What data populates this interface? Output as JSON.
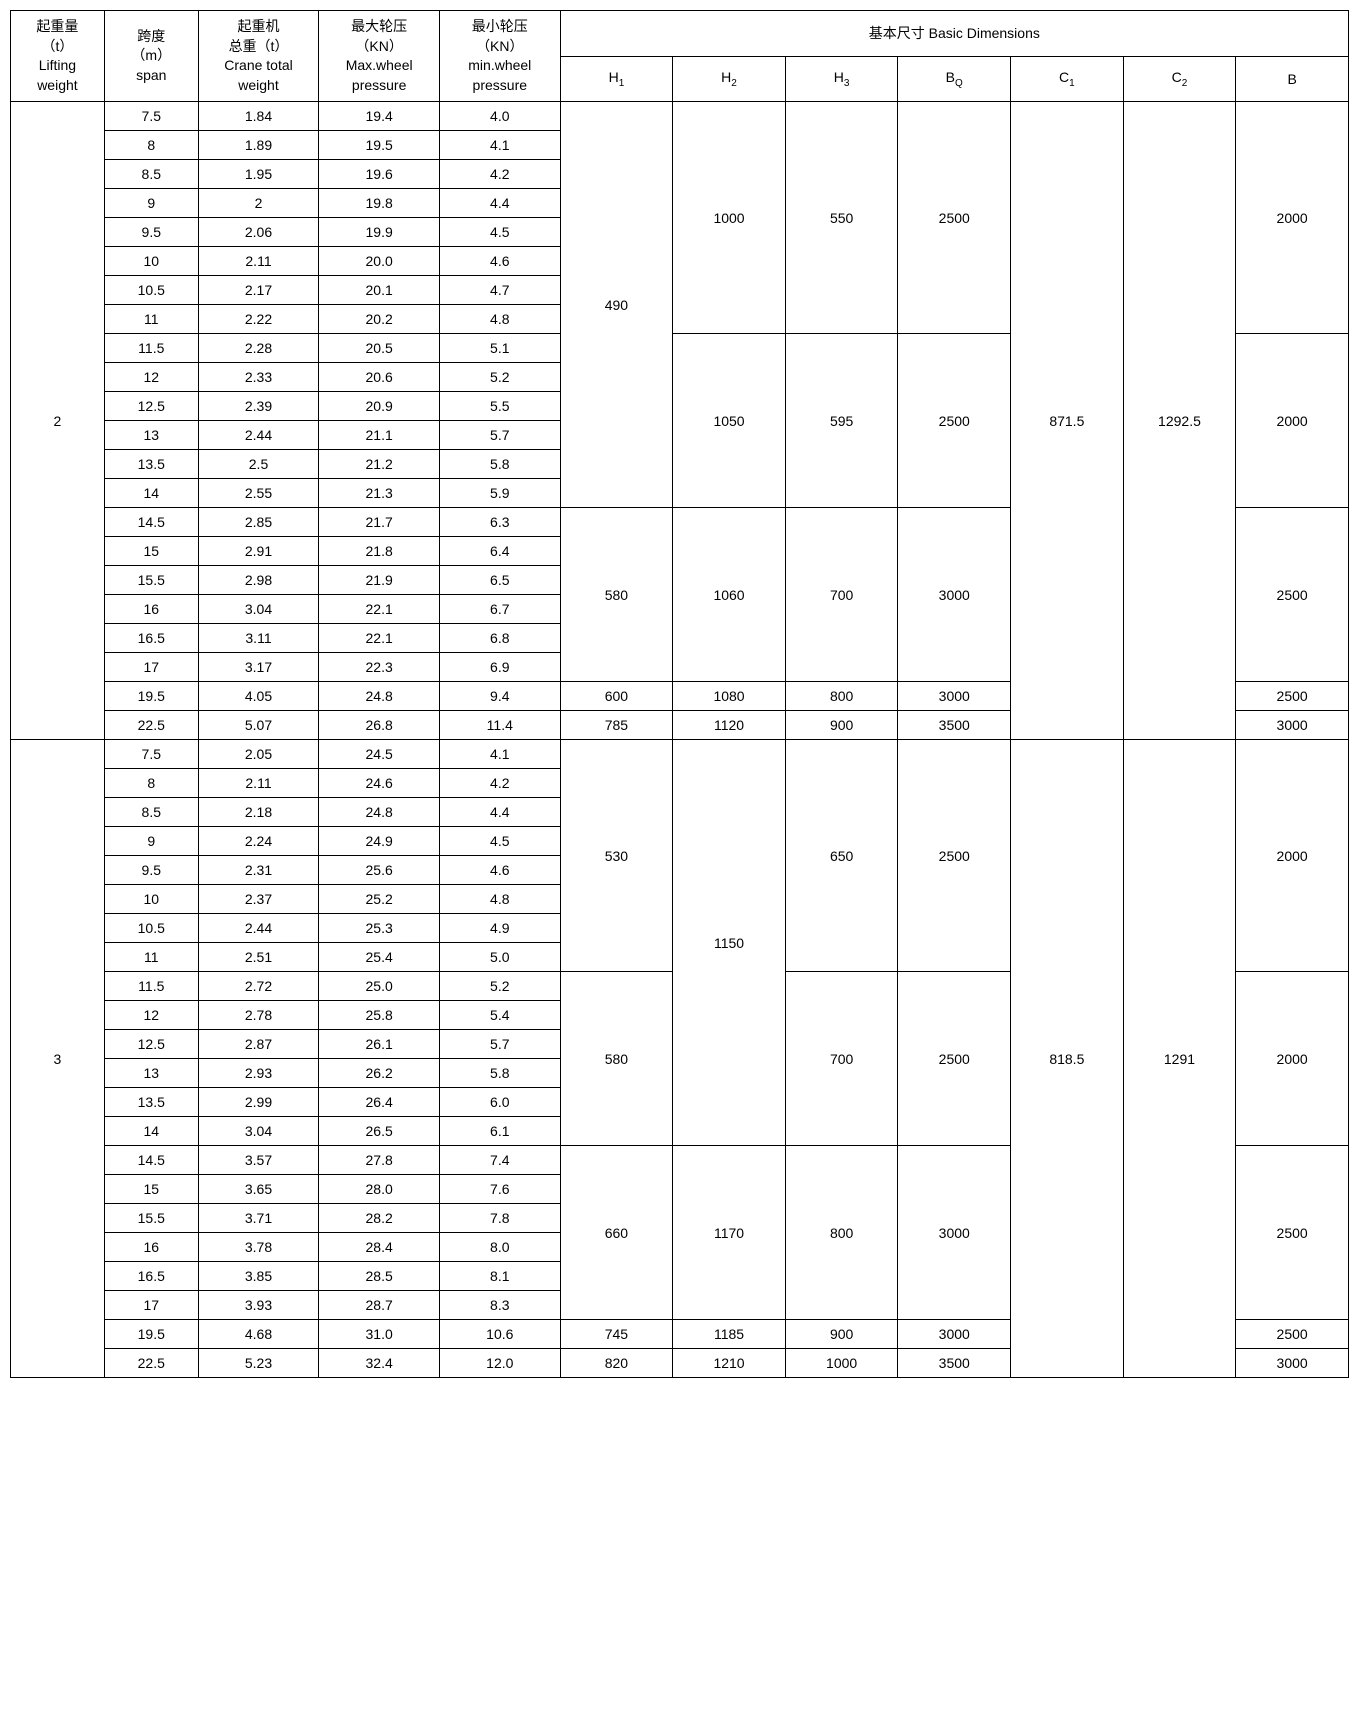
{
  "headers": {
    "lifting": "起重量\n（t）\nLifting\nweight",
    "span": "跨度\n（m）\nspan",
    "total_weight": "起重机\n总重（t）\nCrane total\nweight",
    "max_wheel": "最大轮压\n（KN）\nMax.wheel\npressure",
    "min_wheel": "最小轮压\n（KN）\nmin.wheel\npressure",
    "basic_dim": "基本尺寸 Basic Dimensions",
    "h1_plain": "H",
    "h1_sub": "1",
    "h2_plain": "H",
    "h2_sub": "2",
    "h3_plain": "H",
    "h3_sub": "3",
    "bq_plain": "B",
    "bq_sub": "Q",
    "c1_plain": "C",
    "c1_sub": "1",
    "c2_plain": "C",
    "c2_sub": "2",
    "b": "B"
  },
  "groups": [
    {
      "lifting": "2",
      "c1": "871.5",
      "c2": "1292.5",
      "blocks": [
        {
          "h1": "490",
          "sub": [
            {
              "h2": "1000",
              "h3": "550",
              "bq": "2500",
              "b": "2000",
              "rows": [
                {
                  "span": "7.5",
                  "tw": "1.84",
                  "max": "19.4",
                  "min": "4.0"
                },
                {
                  "span": "8",
                  "tw": "1.89",
                  "max": "19.5",
                  "min": "4.1"
                },
                {
                  "span": "8.5",
                  "tw": "1.95",
                  "max": "19.6",
                  "min": "4.2"
                },
                {
                  "span": "9",
                  "tw": "2",
                  "max": "19.8",
                  "min": "4.4"
                },
                {
                  "span": "9.5",
                  "tw": "2.06",
                  "max": "19.9",
                  "min": "4.5"
                },
                {
                  "span": "10",
                  "tw": "2.11",
                  "max": "20.0",
                  "min": "4.6"
                },
                {
                  "span": "10.5",
                  "tw": "2.17",
                  "max": "20.1",
                  "min": "4.7"
                },
                {
                  "span": "11",
                  "tw": "2.22",
                  "max": "20.2",
                  "min": "4.8"
                }
              ]
            },
            {
              "h2": "1050",
              "h3": "595",
              "bq": "2500",
              "b": "2000",
              "rows": [
                {
                  "span": "11.5",
                  "tw": "2.28",
                  "max": "20.5",
                  "min": "5.1"
                },
                {
                  "span": "12",
                  "tw": "2.33",
                  "max": "20.6",
                  "min": "5.2"
                },
                {
                  "span": "12.5",
                  "tw": "2.39",
                  "max": "20.9",
                  "min": "5.5"
                },
                {
                  "span": "13",
                  "tw": "2.44",
                  "max": "21.1",
                  "min": "5.7"
                },
                {
                  "span": "13.5",
                  "tw": "2.5",
                  "max": "21.2",
                  "min": "5.8"
                },
                {
                  "span": "14",
                  "tw": "2.55",
                  "max": "21.3",
                  "min": "5.9"
                }
              ]
            }
          ]
        },
        {
          "h1": "580",
          "sub": [
            {
              "h2": "1060",
              "h3": "700",
              "bq": "3000",
              "b": "2500",
              "rows": [
                {
                  "span": "14.5",
                  "tw": "2.85",
                  "max": "21.7",
                  "min": "6.3"
                },
                {
                  "span": "15",
                  "tw": "2.91",
                  "max": "21.8",
                  "min": "6.4"
                },
                {
                  "span": "15.5",
                  "tw": "2.98",
                  "max": "21.9",
                  "min": "6.5"
                },
                {
                  "span": "16",
                  "tw": "3.04",
                  "max": "22.1",
                  "min": "6.7"
                },
                {
                  "span": "16.5",
                  "tw": "3.11",
                  "max": "22.1",
                  "min": "6.8"
                },
                {
                  "span": "17",
                  "tw": "3.17",
                  "max": "22.3",
                  "min": "6.9"
                }
              ]
            }
          ]
        },
        {
          "h1": "600",
          "sub": [
            {
              "h2": "1080",
              "h3": "800",
              "bq": "3000",
              "b": "2500",
              "rows": [
                {
                  "span": "19.5",
                  "tw": "4.05",
                  "max": "24.8",
                  "min": "9.4"
                }
              ]
            }
          ]
        },
        {
          "h1": "785",
          "sub": [
            {
              "h2": "1120",
              "h3": "900",
              "bq": "3500",
              "b": "3000",
              "rows": [
                {
                  "span": "22.5",
                  "tw": "5.07",
                  "max": "26.8",
                  "min": "11.4"
                }
              ]
            }
          ]
        }
      ]
    },
    {
      "lifting": "3",
      "c1": "818.5",
      "c2": "1291",
      "blocks": [
        {
          "sub2": [
            {
              "h2": "1150",
              "parts": [
                {
                  "h1": "530",
                  "h3": "650",
                  "bq": "2500",
                  "b": "2000",
                  "rows": [
                    {
                      "span": "7.5",
                      "tw": "2.05",
                      "max": "24.5",
                      "min": "4.1"
                    },
                    {
                      "span": "8",
                      "tw": "2.11",
                      "max": "24.6",
                      "min": "4.2"
                    },
                    {
                      "span": "8.5",
                      "tw": "2.18",
                      "max": "24.8",
                      "min": "4.4"
                    },
                    {
                      "span": "9",
                      "tw": "2.24",
                      "max": "24.9",
                      "min": "4.5"
                    },
                    {
                      "span": "9.5",
                      "tw": "2.31",
                      "max": "25.6",
                      "min": "4.6"
                    },
                    {
                      "span": "10",
                      "tw": "2.37",
                      "max": "25.2",
                      "min": "4.8"
                    },
                    {
                      "span": "10.5",
                      "tw": "2.44",
                      "max": "25.3",
                      "min": "4.9"
                    },
                    {
                      "span": "11",
                      "tw": "2.51",
                      "max": "25.4",
                      "min": "5.0"
                    }
                  ]
                },
                {
                  "h1": "580",
                  "h3": "700",
                  "bq": "2500",
                  "b": "2000",
                  "rows": [
                    {
                      "span": "11.5",
                      "tw": "2.72",
                      "max": "25.0",
                      "min": "5.2"
                    },
                    {
                      "span": "12",
                      "tw": "2.78",
                      "max": "25.8",
                      "min": "5.4"
                    },
                    {
                      "span": "12.5",
                      "tw": "2.87",
                      "max": "26.1",
                      "min": "5.7"
                    },
                    {
                      "span": "13",
                      "tw": "2.93",
                      "max": "26.2",
                      "min": "5.8"
                    },
                    {
                      "span": "13.5",
                      "tw": "2.99",
                      "max": "26.4",
                      "min": "6.0"
                    },
                    {
                      "span": "14",
                      "tw": "3.04",
                      "max": "26.5",
                      "min": "6.1"
                    }
                  ]
                }
              ]
            }
          ]
        },
        {
          "h1": "660",
          "sub": [
            {
              "h2": "1170",
              "h3": "800",
              "bq": "3000",
              "b": "2500",
              "rows": [
                {
                  "span": "14.5",
                  "tw": "3.57",
                  "max": "27.8",
                  "min": "7.4"
                },
                {
                  "span": "15",
                  "tw": "3.65",
                  "max": "28.0",
                  "min": "7.6"
                },
                {
                  "span": "15.5",
                  "tw": "3.71",
                  "max": "28.2",
                  "min": "7.8"
                },
                {
                  "span": "16",
                  "tw": "3.78",
                  "max": "28.4",
                  "min": "8.0"
                },
                {
                  "span": "16.5",
                  "tw": "3.85",
                  "max": "28.5",
                  "min": "8.1"
                },
                {
                  "span": "17",
                  "tw": "3.93",
                  "max": "28.7",
                  "min": "8.3"
                }
              ]
            }
          ]
        },
        {
          "h1": "745",
          "sub": [
            {
              "h2": "1185",
              "h3": "900",
              "bq": "3000",
              "b": "2500",
              "rows": [
                {
                  "span": "19.5",
                  "tw": "4.68",
                  "max": "31.0",
                  "min": "10.6"
                }
              ]
            }
          ]
        },
        {
          "h1": "820",
          "sub": [
            {
              "h2": "1210",
              "h3": "1000",
              "bq": "3500",
              "b": "3000",
              "rows": [
                {
                  "span": "22.5",
                  "tw": "5.23",
                  "max": "32.4",
                  "min": "12.0"
                }
              ]
            }
          ]
        }
      ]
    }
  ]
}
